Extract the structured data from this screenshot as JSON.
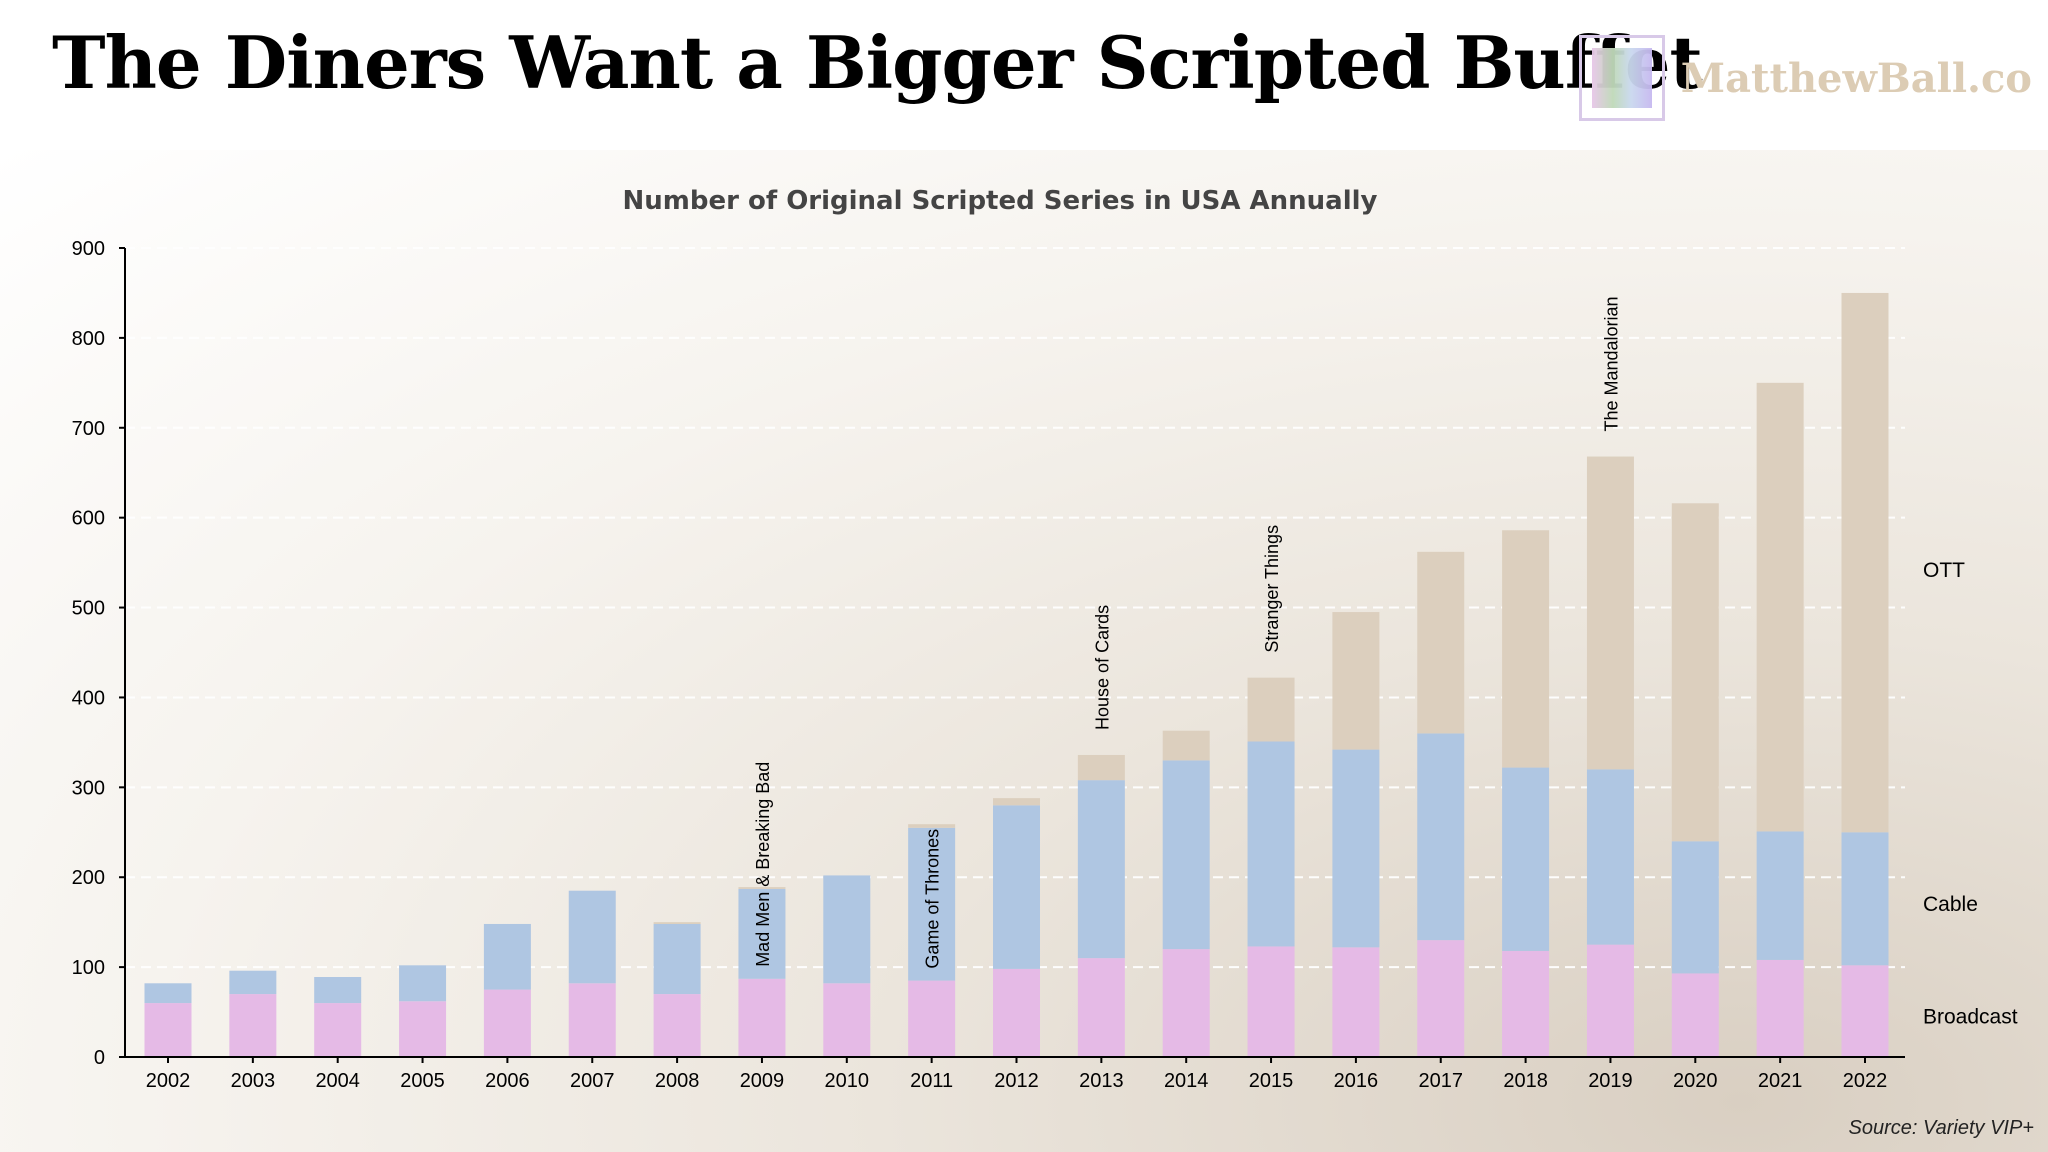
{
  "headline": "The Diners Want a Bigger Scripted Buffet",
  "brand": {
    "name": "MatthewBall.co",
    "logo_icon": "framed-gradient-square-logo"
  },
  "source": "Source: Variety VIP+",
  "colors": {
    "broadcast": "#e5bae6",
    "cable": "#afc6e2",
    "ott": "#dccfbe",
    "axis": "#000000",
    "grid": "#ffffff"
  },
  "chart_data": {
    "type": "bar",
    "stacked": true,
    "title": "Number of Original Scripted Series in USA Annually",
    "xlabel": "",
    "ylabel": "",
    "ylim": [
      0,
      900
    ],
    "yticks": [
      0,
      100,
      200,
      300,
      400,
      500,
      600,
      700,
      800,
      900
    ],
    "grid": true,
    "legend_position": "right",
    "categories": [
      "2002",
      "2003",
      "2004",
      "2005",
      "2006",
      "2007",
      "2008",
      "2009",
      "2010",
      "2011",
      "2012",
      "2013",
      "2014",
      "2015",
      "2016",
      "2017",
      "2018",
      "2019",
      "2020",
      "2021",
      "2022"
    ],
    "series": [
      {
        "name": "Broadcast",
        "values": [
          60,
          70,
          60,
          62,
          75,
          82,
          70,
          87,
          82,
          85,
          98,
          110,
          120,
          123,
          122,
          130,
          118,
          125,
          93,
          108,
          102
        ]
      },
      {
        "name": "Cable",
        "values": [
          22,
          26,
          29,
          40,
          73,
          103,
          78,
          100,
          120,
          170,
          182,
          198,
          210,
          228,
          220,
          230,
          204,
          195,
          147,
          143,
          148
        ]
      },
      {
        "name": "OTT",
        "values": [
          0,
          0,
          0,
          0,
          0,
          0,
          2,
          2,
          0,
          4,
          8,
          28,
          33,
          71,
          153,
          202,
          264,
          348,
          376,
          499,
          600
        ]
      }
    ],
    "annotations": [
      {
        "category": "2009",
        "text": "Mad Men & Breaking Bad"
      },
      {
        "category": "2011",
        "text": "Game of Thrones"
      },
      {
        "category": "2013",
        "text": "House of Cards"
      },
      {
        "category": "2015",
        "text": "Stranger Things"
      },
      {
        "category": "2019",
        "text": "The Mandalorian"
      }
    ]
  }
}
